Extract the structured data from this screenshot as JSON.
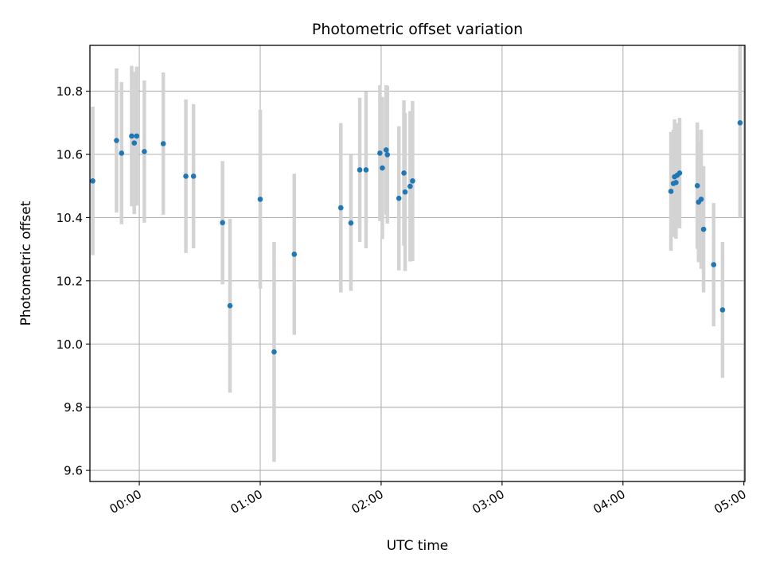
{
  "chart_data": {
    "type": "scatter",
    "title": "Photometric offset variation",
    "xlabel": "UTC time",
    "ylabel": "Photometric offset",
    "x_unit": "minutes after 00:00 UTC",
    "xlim": [
      -24.5,
      300.5
    ],
    "ylim": [
      9.565,
      10.945
    ],
    "x_ticks": [
      {
        "value": 0,
        "label": "00:00"
      },
      {
        "value": 60,
        "label": "01:00"
      },
      {
        "value": 120,
        "label": "02:00"
      },
      {
        "value": 180,
        "label": "03:00"
      },
      {
        "value": 240,
        "label": "04:00"
      },
      {
        "value": 300,
        "label": "05:00"
      }
    ],
    "y_ticks": [
      {
        "value": 9.6,
        "label": "9.6"
      },
      {
        "value": 9.8,
        "label": "9.8"
      },
      {
        "value": 10.0,
        "label": "10.0"
      },
      {
        "value": 10.2,
        "label": "10.2"
      },
      {
        "value": 10.4,
        "label": "10.4"
      },
      {
        "value": 10.6,
        "label": "10.6"
      },
      {
        "value": 10.8,
        "label": "10.8"
      }
    ],
    "grid": true,
    "marker_color": "#1f77b4",
    "errorbar_color": "#d3d3d3",
    "points": [
      {
        "x": -23.1,
        "y": 10.516,
        "err": 0.235
      },
      {
        "x": -11.3,
        "y": 10.644,
        "err": 0.228
      },
      {
        "x": -8.8,
        "y": 10.604,
        "err": 0.225
      },
      {
        "x": -3.8,
        "y": 10.658,
        "err": 0.222
      },
      {
        "x": -2.5,
        "y": 10.636,
        "err": 0.225
      },
      {
        "x": -1.3,
        "y": 10.658,
        "err": 0.22
      },
      {
        "x": 2.5,
        "y": 10.609,
        "err": 0.225
      },
      {
        "x": 11.9,
        "y": 10.634,
        "err": 0.225
      },
      {
        "x": 23.1,
        "y": 10.531,
        "err": 0.243
      },
      {
        "x": 26.9,
        "y": 10.531,
        "err": 0.228
      },
      {
        "x": 41.3,
        "y": 10.384,
        "err": 0.195
      },
      {
        "x": 45.0,
        "y": 10.121,
        "err": 0.275
      },
      {
        "x": 60.0,
        "y": 10.458,
        "err": 0.283
      },
      {
        "x": 66.9,
        "y": 9.975,
        "err": 0.348
      },
      {
        "x": 76.9,
        "y": 10.284,
        "err": 0.255
      },
      {
        "x": 100.0,
        "y": 10.431,
        "err": 0.268
      },
      {
        "x": 105.0,
        "y": 10.383,
        "err": 0.215
      },
      {
        "x": 109.4,
        "y": 10.551,
        "err": 0.228
      },
      {
        "x": 112.5,
        "y": 10.551,
        "err": 0.248
      },
      {
        "x": 119.4,
        "y": 10.604,
        "err": 0.215
      },
      {
        "x": 120.6,
        "y": 10.557,
        "err": 0.225
      },
      {
        "x": 122.5,
        "y": 10.614,
        "err": 0.205
      },
      {
        "x": 123.1,
        "y": 10.599,
        "err": 0.218
      },
      {
        "x": 128.8,
        "y": 10.461,
        "err": 0.228
      },
      {
        "x": 131.3,
        "y": 10.541,
        "err": 0.23
      },
      {
        "x": 131.9,
        "y": 10.481,
        "err": 0.25
      },
      {
        "x": 134.4,
        "y": 10.499,
        "err": 0.238
      },
      {
        "x": 135.6,
        "y": 10.516,
        "err": 0.253
      },
      {
        "x": 263.8,
        "y": 10.483,
        "err": 0.188
      },
      {
        "x": 265.0,
        "y": 10.508,
        "err": 0.17
      },
      {
        "x": 265.6,
        "y": 10.529,
        "err": 0.182
      },
      {
        "x": 266.3,
        "y": 10.511,
        "err": 0.178
      },
      {
        "x": 266.9,
        "y": 10.534,
        "err": 0.165
      },
      {
        "x": 268.1,
        "y": 10.541,
        "err": 0.175
      },
      {
        "x": 276.9,
        "y": 10.501,
        "err": 0.2
      },
      {
        "x": 277.5,
        "y": 10.449,
        "err": 0.19
      },
      {
        "x": 278.8,
        "y": 10.458,
        "err": 0.22
      },
      {
        "x": 280.0,
        "y": 10.363,
        "err": 0.2
      },
      {
        "x": 285.0,
        "y": 10.251,
        "err": 0.195
      },
      {
        "x": 289.4,
        "y": 10.108,
        "err": 0.215
      },
      {
        "x": 298.1,
        "y": 10.7,
        "err": 0.3
      }
    ]
  }
}
